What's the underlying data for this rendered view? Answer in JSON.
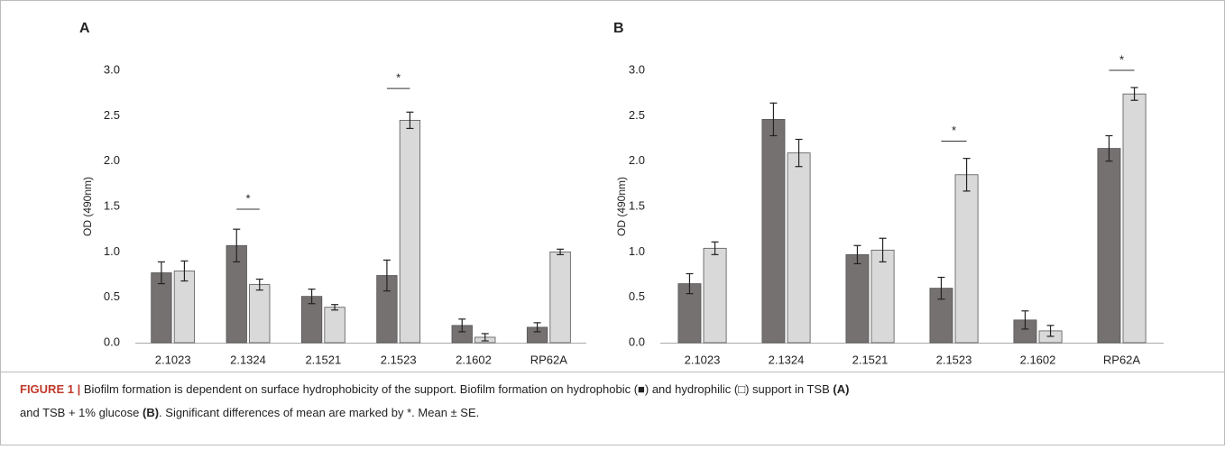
{
  "chart_data": [
    {
      "type": "bar",
      "label": "A",
      "ylabel": "OD (490nm)",
      "categories": [
        "2.1023",
        "2.1324",
        "2.1521",
        "2.1523",
        "2.1602",
        "RP62A"
      ],
      "series": [
        {
          "color": "#767171",
          "values": [
            0.77,
            1.07,
            0.51,
            0.74,
            0.19,
            0.17
          ],
          "errors": [
            0.12,
            0.18,
            0.08,
            0.17,
            0.07,
            0.05
          ]
        },
        {
          "color": "#d9d9d9",
          "values": [
            0.79,
            0.64,
            0.39,
            2.45,
            0.06,
            1.0
          ],
          "errors": [
            0.11,
            0.06,
            0.03,
            0.09,
            0.04,
            0.03
          ]
        }
      ],
      "ylim": [
        0,
        3
      ],
      "yticks": [
        {
          "value": 0,
          "label": "0.0"
        },
        0.5,
        {
          "value": 1,
          "label": "1.0"
        },
        1.5,
        {
          "value": 2,
          "label": "2.0"
        },
        2.5,
        {
          "value": 3,
          "label": "3.0"
        }
      ],
      "annotations": [
        {
          "text": "*",
          "x": "2.1324",
          "y": 1.47
        },
        {
          "text": "*",
          "x": "2.1523",
          "y": 2.8
        }
      ]
    },
    {
      "type": "bar",
      "label": "B",
      "ylabel": "OD (490nm)",
      "categories": [
        "2.1023",
        "2.1324",
        "2.1521",
        "2.1523",
        "2.1602",
        "RP62A"
      ],
      "series": [
        {
          "color": "#767171",
          "values": [
            0.65,
            2.46,
            0.97,
            0.6,
            0.25,
            2.14
          ],
          "errors": [
            0.11,
            0.18,
            0.1,
            0.12,
            0.1,
            0.14
          ]
        },
        {
          "color": "#d9d9d9",
          "values": [
            1.04,
            2.09,
            1.02,
            1.85,
            0.13,
            2.74
          ],
          "errors": [
            0.07,
            0.15,
            0.13,
            0.18,
            0.06,
            0.07
          ]
        }
      ],
      "ylim": [
        0,
        3
      ],
      "yticks": [
        {
          "value": 0,
          "label": "0.0"
        },
        0.5,
        {
          "value": 1,
          "label": "1.0"
        },
        1.5,
        {
          "value": 2,
          "label": "2.0"
        },
        2.5,
        {
          "value": 3,
          "label": "3.0"
        }
      ],
      "annotations": [
        {
          "text": "*",
          "x": "2.1523",
          "y": 2.22
        },
        {
          "text": "*",
          "x": "RP62A",
          "y": 3.0
        }
      ]
    }
  ],
  "caption": {
    "lines": [
      [
        {
          "text": "FIGURE 1 |",
          "bold": true
        },
        {
          "text": " Biofilm formation is dependent on surface hydrophobicity of the support. Biofilm formation on hydrophobic (■) and hydrophilic (□) support in TSB ",
          "bold": false
        },
        {
          "text": "(A)",
          "bold": true
        }
      ],
      [
        {
          "text": "and TSB + 1% glucose ",
          "bold": false
        },
        {
          "text": "(B)",
          "bold": true
        },
        {
          "text": ". Significant differences of mean are marked by *. Mean ± SE.",
          "bold": false
        }
      ]
    ]
  }
}
